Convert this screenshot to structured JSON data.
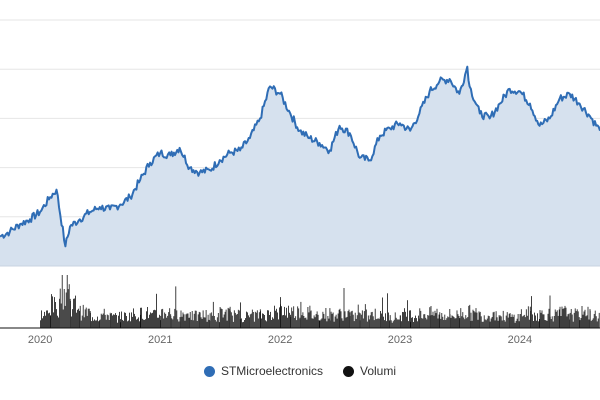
{
  "colors": {
    "price_line": "#2f6db5",
    "price_fill": "#d6e1ee",
    "volume": "#111111",
    "grid": "#e6e6e6"
  },
  "chart_data": [
    {
      "type": "area",
      "title": "",
      "xlabel": "",
      "ylabel": "",
      "x_ticks": [
        "2020",
        "2021",
        "2022",
        "2023",
        "2024"
      ],
      "xlim": [
        "2019-09-01",
        "2024-09-01"
      ],
      "ylim": [
        0,
        100
      ],
      "grid": true,
      "legend": "bottom-center",
      "series": [
        {
          "name": "STMicroelectronics",
          "x": [
            "2019-09-01",
            "2019-10-01",
            "2019-11-01",
            "2019-12-01",
            "2020-01-01",
            "2020-02-01",
            "2020-02-20",
            "2020-03-18",
            "2020-04-01",
            "2020-05-01",
            "2020-06-01",
            "2020-07-01",
            "2020-08-01",
            "2020-09-01",
            "2020-10-01",
            "2020-11-01",
            "2020-12-01",
            "2021-01-01",
            "2021-02-01",
            "2021-03-01",
            "2021-04-01",
            "2021-05-01",
            "2021-06-01",
            "2021-07-01",
            "2021-08-01",
            "2021-09-01",
            "2021-10-01",
            "2021-11-01",
            "2021-12-01",
            "2022-01-01",
            "2022-02-01",
            "2022-03-01",
            "2022-04-01",
            "2022-05-01",
            "2022-06-01",
            "2022-07-01",
            "2022-08-01",
            "2022-09-01",
            "2022-10-01",
            "2022-11-01",
            "2022-12-01",
            "2023-01-01",
            "2023-02-01",
            "2023-03-01",
            "2023-04-01",
            "2023-05-01",
            "2023-06-01",
            "2023-07-01",
            "2023-07-25",
            "2023-08-01",
            "2023-09-01",
            "2023-10-01",
            "2023-11-01",
            "2023-12-01",
            "2024-01-01",
            "2024-02-01",
            "2024-03-01",
            "2024-04-01",
            "2024-05-01",
            "2024-06-01",
            "2024-07-01",
            "2024-08-01",
            "2024-09-01"
          ],
          "y": [
            12,
            14,
            17,
            19,
            22,
            28,
            31,
            8,
            16,
            19,
            22,
            24,
            23,
            25,
            28,
            35,
            42,
            46,
            45,
            48,
            40,
            38,
            39,
            43,
            46,
            47,
            52,
            60,
            73,
            70,
            62,
            55,
            52,
            50,
            47,
            57,
            54,
            44,
            43,
            53,
            56,
            58,
            55,
            62,
            71,
            75,
            76,
            70,
            81,
            73,
            62,
            60,
            66,
            72,
            71,
            66,
            57,
            60,
            68,
            70,
            66,
            61,
            55
          ]
        },
        {
          "name": "Volumi",
          "x": [
            "2020-01",
            "2020-02",
            "2020-03",
            "2020-04",
            "2020-05",
            "2020-06",
            "2020-07",
            "2020-08",
            "2020-09",
            "2020-10",
            "2020-11",
            "2020-12",
            "2021-01",
            "2021-02",
            "2021-03",
            "2021-04",
            "2021-05",
            "2021-06",
            "2021-07",
            "2021-08",
            "2021-09",
            "2021-10",
            "2021-11",
            "2021-12",
            "2022-01",
            "2022-02",
            "2022-03",
            "2022-04",
            "2022-05",
            "2022-06",
            "2022-07",
            "2022-08",
            "2022-09",
            "2022-10",
            "2022-11",
            "2022-12",
            "2023-01",
            "2023-02",
            "2023-03",
            "2023-04",
            "2023-05",
            "2023-06",
            "2023-07",
            "2023-08",
            "2023-09",
            "2023-10",
            "2023-11",
            "2023-12",
            "2024-01",
            "2024-02",
            "2024-03",
            "2024-04",
            "2024-05",
            "2024-06",
            "2024-07",
            "2024-08"
          ],
          "y": [
            35,
            55,
            95,
            60,
            40,
            30,
            34,
            28,
            30,
            36,
            38,
            32,
            40,
            34,
            36,
            30,
            33,
            28,
            38,
            32,
            30,
            33,
            35,
            38,
            45,
            42,
            40,
            34,
            36,
            33,
            38,
            30,
            32,
            36,
            30,
            28,
            35,
            32,
            36,
            38,
            34,
            33,
            40,
            36,
            32,
            34,
            30,
            28,
            38,
            34,
            36,
            33,
            40,
            34,
            38,
            32
          ]
        }
      ]
    }
  ]
}
